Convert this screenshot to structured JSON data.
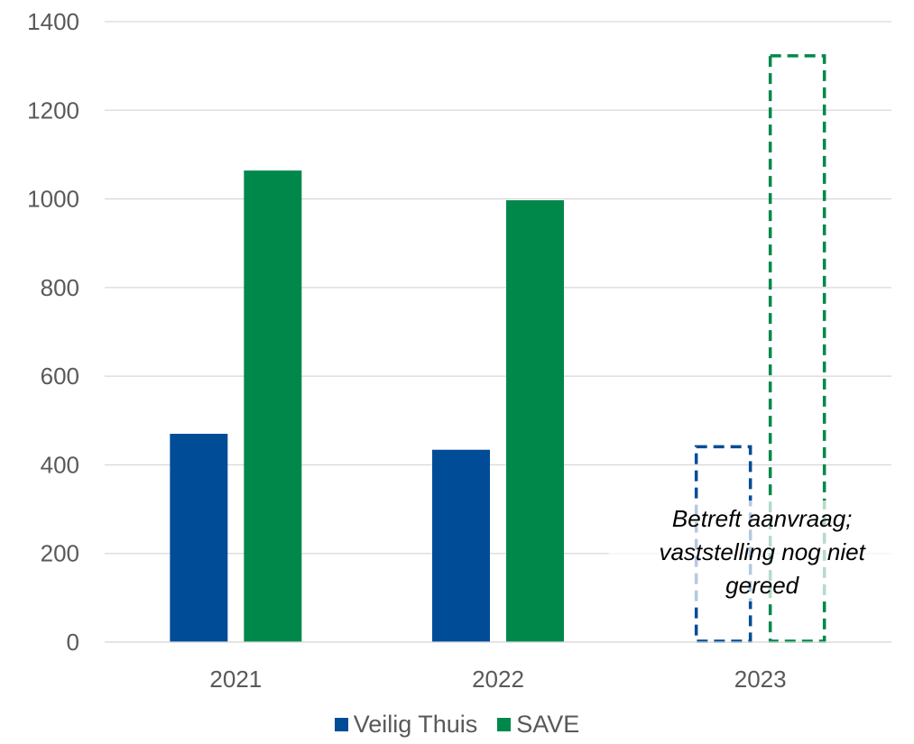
{
  "chart_data": {
    "type": "bar",
    "categories": [
      "2021",
      "2022",
      "2023"
    ],
    "series": [
      {
        "name": "Veilig Thuis",
        "color": "#004C97",
        "values": [
          470,
          434,
          445
        ],
        "dashed": [
          false,
          false,
          true
        ]
      },
      {
        "name": "SAVE",
        "color": "#00884A",
        "values": [
          1064,
          997,
          1327
        ],
        "dashed": [
          false,
          false,
          true
        ]
      }
    ],
    "ylim": [
      0,
      1400
    ],
    "yticks": [
      0,
      200,
      400,
      600,
      800,
      1000,
      1200,
      1400
    ],
    "grid": true,
    "legend_position": "bottom",
    "annotation": {
      "category": "2023",
      "lines": [
        "Betreft aanvraag;",
        "vaststelling nog niet",
        "gereed"
      ]
    }
  }
}
